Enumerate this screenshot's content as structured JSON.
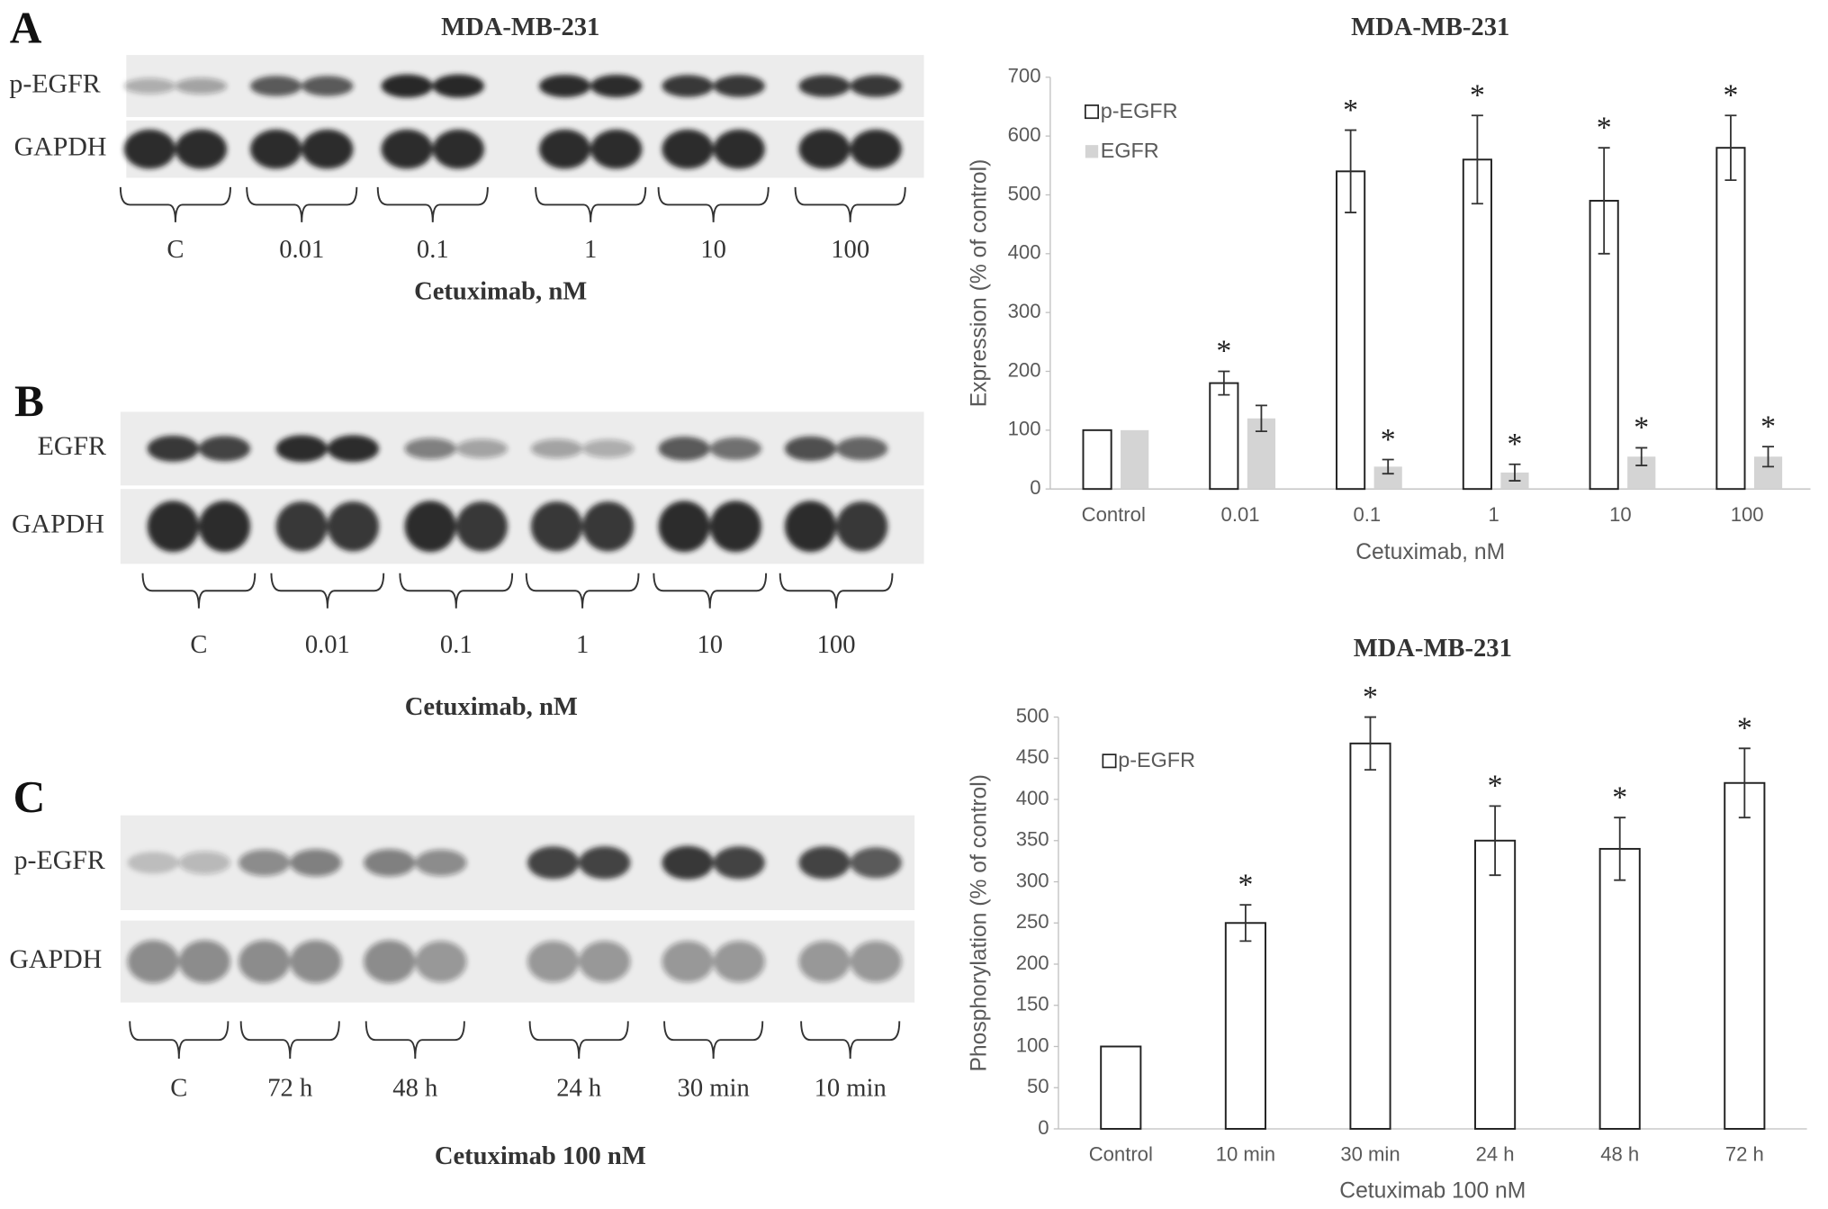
{
  "blots": [
    {
      "label": "A",
      "title": "MDA-MB-231",
      "rows": [
        "p-EGFR",
        "GAPDH"
      ],
      "groups": [
        "C",
        "0.01",
        "0.1",
        "1",
        "10",
        "100"
      ],
      "xlabel": "Cetuximab, nM"
    },
    {
      "label": "B",
      "rows": [
        "EGFR",
        "GAPDH"
      ],
      "groups": [
        "C",
        "0.01",
        "0.1",
        "1",
        "10",
        "100"
      ],
      "xlabel": "Cetuximab, nM"
    },
    {
      "label": "C",
      "rows": [
        "p-EGFR",
        "GAPDH"
      ],
      "groups": [
        "C",
        "72 h",
        "48 h",
        "24 h",
        "30 min",
        "10 min"
      ],
      "xlabel": "Cetuximab 100 nM"
    }
  ],
  "chart_data": [
    {
      "type": "bar",
      "title": "MDA-MB-231",
      "x_label": "Cetuximab, nM",
      "y_label": "Expression (% of control)",
      "categories": [
        "Control",
        "0.01",
        "0.1",
        "1",
        "10",
        "100"
      ],
      "series": [
        {
          "name": "p-EGFR",
          "color": "#ffffff",
          "values": [
            100,
            180,
            540,
            560,
            490,
            580
          ],
          "errors": [
            null,
            20,
            70,
            75,
            90,
            55
          ],
          "labels": [
            null,
            "*",
            "*",
            "*",
            "*",
            "*"
          ]
        },
        {
          "name": "EGFR",
          "color": "#d4d4d4",
          "values": [
            100,
            120,
            38,
            28,
            55,
            55
          ],
          "errors": [
            null,
            22,
            12,
            14,
            15,
            17
          ],
          "labels": [
            null,
            null,
            "*",
            "*",
            "*",
            "*"
          ]
        }
      ],
      "ylim": [
        0,
        700
      ],
      "yticks": [
        0,
        100,
        200,
        300,
        400,
        500,
        600,
        700
      ],
      "grid": false,
      "legend": "upper left"
    },
    {
      "type": "bar",
      "title": "MDA-MB-231",
      "x_label": "Cetuximab 100 nM",
      "y_label": "Phosphorylation (% of control)",
      "categories": [
        "Control",
        "10 min",
        "30 min",
        "24 h",
        "48 h",
        "72 h"
      ],
      "series": [
        {
          "name": "p-EGFR",
          "color": "#ffffff",
          "values": [
            100,
            250,
            468,
            350,
            340,
            420
          ],
          "errors": [
            null,
            22,
            32,
            42,
            38,
            42
          ],
          "labels": [
            null,
            "*",
            "*",
            "*",
            "*",
            "*"
          ]
        }
      ],
      "ylim": [
        0,
        500
      ],
      "yticks": [
        0,
        50,
        100,
        150,
        200,
        250,
        300,
        350,
        400,
        450,
        500
      ],
      "grid": false,
      "legend": "upper left"
    }
  ]
}
